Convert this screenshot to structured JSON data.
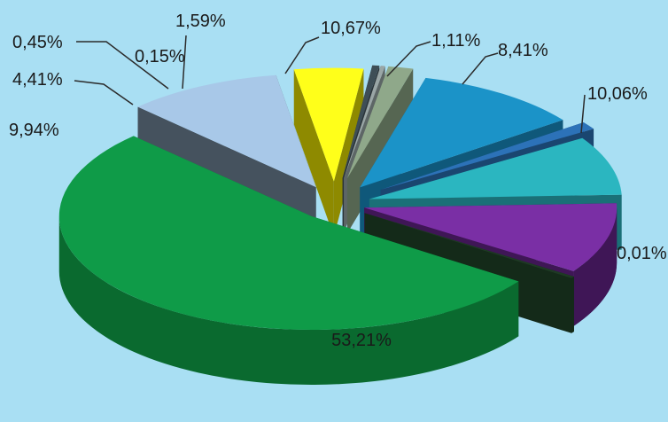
{
  "chart_data": {
    "type": "pie",
    "style": "3d-exploded",
    "title": "",
    "legend": "none",
    "slices": [
      {
        "label": "53,21%",
        "value": 53.21,
        "color": "#0f9b48",
        "side": "#0a6a2f"
      },
      {
        "label": "9,94%",
        "value": 9.94,
        "color": "#a8c8e8",
        "side": "#45525e"
      },
      {
        "label": "4,41%",
        "value": 4.41,
        "color": "#ffff1a",
        "side": "#8e8a00"
      },
      {
        "label": "0,45%",
        "value": 0.45,
        "color": "#3e4e56",
        "side": "#2a3338"
      },
      {
        "label": "0,15%",
        "value": 0.15,
        "color": "#9aa6a6",
        "side": "#5d6666"
      },
      {
        "label": "1,59%",
        "value": 1.59,
        "color": "#8fa88a",
        "side": "#566652"
      },
      {
        "label": "10,67%",
        "value": 10.67,
        "color": "#1b93c8",
        "side": "#0f587a"
      },
      {
        "label": "1,11%",
        "value": 1.11,
        "color": "#2c72b8",
        "side": "#1a4670"
      },
      {
        "label": "8,41%",
        "value": 8.41,
        "color": "#2bb6c0",
        "side": "#1a7077"
      },
      {
        "label": "10,06%",
        "value": 10.06,
        "color": "#7a2fa5",
        "side": "#3f1656"
      },
      {
        "label": "0,01%",
        "value": 0.01,
        "color": "#1e3a24",
        "side": "#142a19"
      }
    ]
  }
}
